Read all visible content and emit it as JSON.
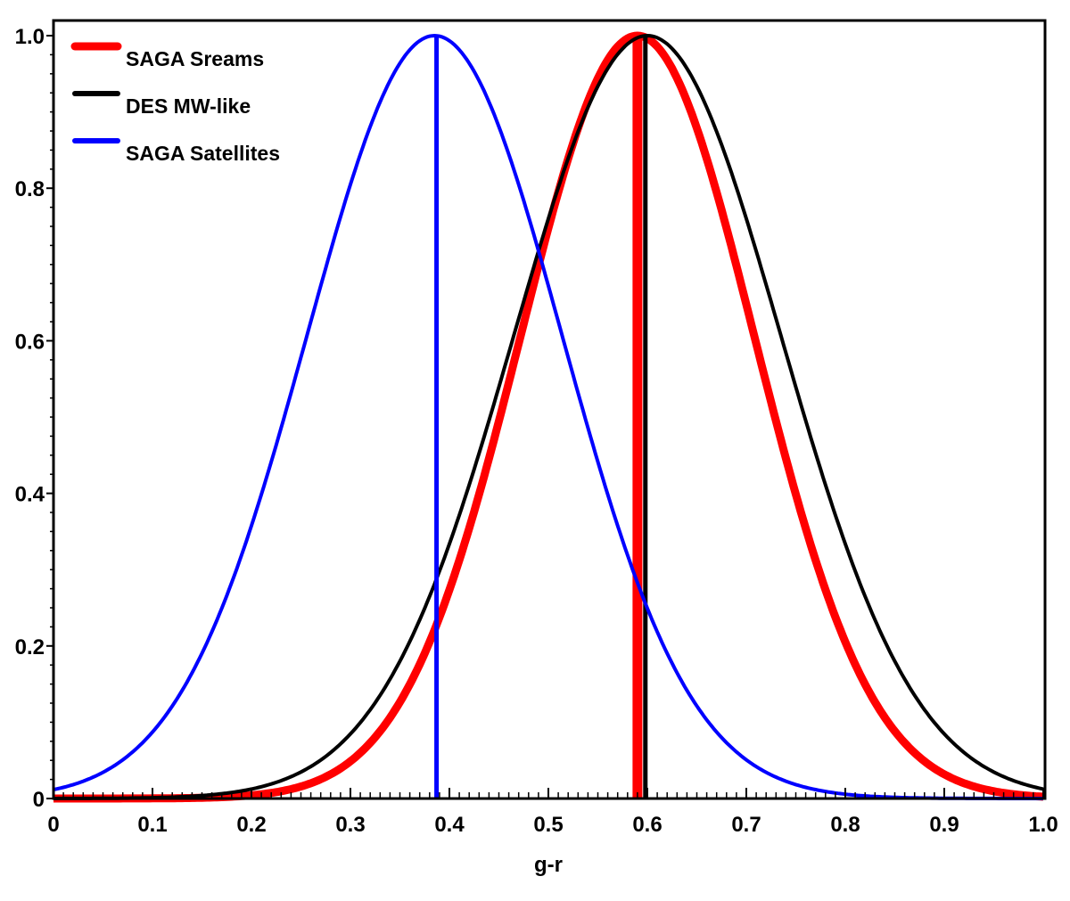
{
  "chart_data": {
    "type": "line",
    "title": "",
    "xlabel": "g-r",
    "ylabel": "",
    "xlim": [
      0,
      1.0
    ],
    "ylim": [
      0,
      1.0
    ],
    "xticks": [
      "0",
      "0.1",
      "0.2",
      "0.3",
      "0.4",
      "0.5",
      "0.6",
      "0.7",
      "0.8",
      "0.9",
      "1.0"
    ],
    "yticks": [
      "0",
      "0.2",
      "0.4",
      "0.6",
      "0.8",
      "1.0"
    ],
    "grid": false,
    "legend_position": "top-left",
    "series": [
      {
        "name": "SAGA Sreams",
        "color": "#ff0000",
        "model": "gaussian",
        "mean": 0.59,
        "sigma": 0.118,
        "peak": 1.0,
        "median_line_x": 0.59,
        "thick": true
      },
      {
        "name": "DES MW-like",
        "color": "#000000",
        "model": "gaussian",
        "mean": 0.6,
        "sigma": 0.135,
        "peak": 1.0,
        "median_line_x": 0.598,
        "thick": false
      },
      {
        "name": "SAGA Satellites",
        "color": "#0000ff",
        "model": "gaussian",
        "mean": 0.385,
        "sigma": 0.129,
        "peak": 1.0,
        "median_line_x": 0.387,
        "thick": false
      }
    ]
  }
}
